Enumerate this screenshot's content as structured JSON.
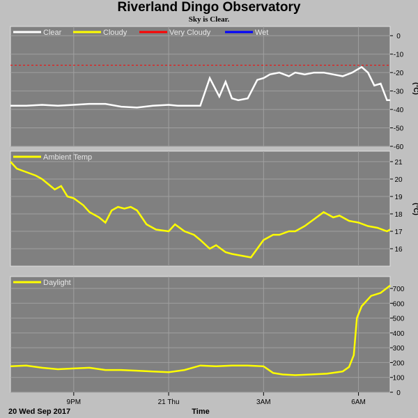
{
  "header": {
    "title": "Riverland Dingo Observatory",
    "subtitle": "Sky is Clear."
  },
  "footer": {
    "date": "20 Wed Sep 2017",
    "xlabel": "Time"
  },
  "colors": {
    "background": "#c0c0c0",
    "plot_bg": "#808080",
    "grid": "#a0a0a0",
    "clear": "#ffffff",
    "cloudy": "#ffff00",
    "very_cloudy": "#ff0000",
    "wet": "#0000ff"
  },
  "chart_data": [
    {
      "type": "line",
      "ylabel": "(°C)",
      "ylim": [
        -60,
        5
      ],
      "yticks": [
        0,
        -10,
        -20,
        -30,
        -40,
        -50,
        -60
      ],
      "grid": true,
      "legend": [
        "Clear",
        "Cloudy",
        "Very Cloudy",
        "Wet"
      ],
      "legend_placement": "top-left",
      "threshold": {
        "name": "Very Cloudy",
        "value": -16
      },
      "series": [
        {
          "name": "Clear",
          "color": "#ffffff",
          "x": [
            19.0,
            19.5,
            20.0,
            20.5,
            21.0,
            21.5,
            22.0,
            22.5,
            23.0,
            23.5,
            24.0,
            24.3,
            24.7,
            25.0,
            25.3,
            25.6,
            25.8,
            26.0,
            26.2,
            26.5,
            26.8,
            27.0,
            27.2,
            27.5,
            27.8,
            28.0,
            28.3,
            28.6,
            28.9,
            29.2,
            29.5,
            29.8,
            30.1,
            30.3,
            30.5,
            30.7,
            30.9,
            31.0
          ],
          "y": [
            -38,
            -38,
            -37.5,
            -38,
            -37.5,
            -37,
            -37,
            -38.5,
            -39,
            -38,
            -37.5,
            -38,
            -38,
            -38,
            -23,
            -33,
            -25,
            -34,
            -35,
            -34,
            -24,
            -23,
            -21,
            -20,
            -22,
            -20,
            -21,
            -20,
            -20,
            -21,
            -22,
            -20,
            -17,
            -20,
            -27,
            -26,
            -35,
            -35
          ]
        }
      ]
    },
    {
      "type": "line",
      "ylabel": "(°C)",
      "ylim": [
        15,
        21.6
      ],
      "yticks": [
        21,
        20,
        19,
        18,
        17,
        16
      ],
      "grid": true,
      "legend": [
        "Ambient Temp"
      ],
      "legend_placement": "top-left",
      "series": [
        {
          "name": "Ambient Temp",
          "color": "#ffff00",
          "x": [
            19.0,
            19.2,
            19.5,
            19.8,
            20.0,
            20.2,
            20.4,
            20.6,
            20.8,
            21.0,
            21.3,
            21.5,
            21.8,
            22.0,
            22.2,
            22.4,
            22.6,
            22.8,
            23.0,
            23.3,
            23.6,
            24.0,
            24.2,
            24.5,
            24.8,
            25.0,
            25.3,
            25.5,
            25.8,
            26.0,
            26.3,
            26.6,
            27.0,
            27.3,
            27.5,
            27.8,
            28.0,
            28.3,
            28.6,
            28.9,
            29.2,
            29.4,
            29.7,
            30.0,
            30.3,
            30.6,
            30.9,
            31.0
          ],
          "y": [
            21.0,
            20.6,
            20.4,
            20.2,
            20.0,
            19.7,
            19.4,
            19.6,
            19.0,
            18.9,
            18.5,
            18.1,
            17.8,
            17.5,
            18.2,
            18.4,
            18.3,
            18.4,
            18.2,
            17.4,
            17.1,
            17.0,
            17.4,
            17.0,
            16.8,
            16.5,
            16.0,
            16.2,
            15.8,
            15.7,
            15.6,
            15.5,
            16.5,
            16.8,
            16.8,
            17.0,
            17.0,
            17.3,
            17.7,
            18.1,
            17.8,
            17.9,
            17.6,
            17.5,
            17.3,
            17.2,
            17.0,
            17.1
          ]
        }
      ]
    },
    {
      "type": "line",
      "ylim": [
        0,
        780
      ],
      "yticks": [
        700,
        600,
        500,
        400,
        300,
        200,
        100,
        0
      ],
      "grid": true,
      "legend": [
        "Daylight"
      ],
      "legend_placement": "top-left",
      "series": [
        {
          "name": "Daylight",
          "color": "#ffff00",
          "x": [
            19.0,
            19.5,
            20.0,
            20.5,
            21.0,
            21.5,
            22.0,
            22.5,
            23.0,
            23.5,
            24.0,
            24.5,
            25.0,
            25.5,
            26.0,
            26.5,
            27.0,
            27.3,
            27.6,
            28.0,
            28.5,
            29.0,
            29.5,
            29.7,
            29.85,
            29.95,
            30.1,
            30.4,
            30.7,
            31.0
          ],
          "y": [
            175,
            180,
            165,
            155,
            160,
            165,
            150,
            150,
            145,
            140,
            135,
            150,
            180,
            175,
            180,
            180,
            175,
            130,
            120,
            115,
            120,
            125,
            140,
            170,
            250,
            500,
            580,
            650,
            670,
            720
          ]
        }
      ]
    },
    {
      "type": "line",
      "xlim": [
        19.0,
        31.0
      ],
      "xtick_values": [
        21,
        24,
        27,
        30
      ],
      "xtick_labels": [
        "9PM",
        "21 Thu",
        "3AM",
        "6AM"
      ]
    }
  ]
}
